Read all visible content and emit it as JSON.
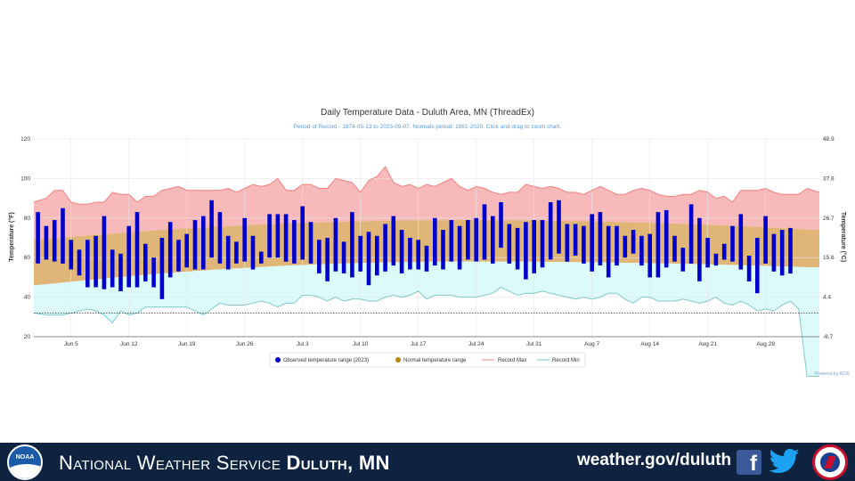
{
  "chart_data": {
    "type": "bar",
    "title": "Daily Temperature Data - Duluth Area, MN (ThreadEx)",
    "subtitle": "Period of Record - 1874-05-13 to 2023-09-07. Normals period: 1991-2020. Click and drag to zoom chart.",
    "ylabel": "Temperature (°F)",
    "y2label": "Temperature (°C)",
    "ylim": [
      20,
      120
    ],
    "yticks": [
      "120",
      "100",
      "80",
      "60",
      "40",
      "20"
    ],
    "y2ticks": [
      "48.9",
      "37.8",
      "26.7",
      "15.6",
      "4.4",
      "-6.7"
    ],
    "xticks": [
      "Jun 5",
      "Jun 12",
      "Jun 19",
      "Jun 26",
      "Jul 3",
      "Jul 10",
      "Jul 17",
      "Jul 24",
      "Jul 31",
      "Aug 7",
      "Aug 14",
      "Aug 21",
      "Aug 28"
    ],
    "grid": true,
    "legend_position": "bottom",
    "start_date": "2023-06-01",
    "end_date": "2023-09-03",
    "dates": [
      "Jun 1",
      "Jun 2",
      "Jun 3",
      "Jun 4",
      "Jun 5",
      "Jun 6",
      "Jun 7",
      "Jun 8",
      "Jun 9",
      "Jun 10",
      "Jun 11",
      "Jun 12",
      "Jun 13",
      "Jun 14",
      "Jun 15",
      "Jun 16",
      "Jun 17",
      "Jun 18",
      "Jun 19",
      "Jun 20",
      "Jun 21",
      "Jun 22",
      "Jun 23",
      "Jun 24",
      "Jun 25",
      "Jun 26",
      "Jun 27",
      "Jun 28",
      "Jun 29",
      "Jun 30",
      "Jul 1",
      "Jul 2",
      "Jul 3",
      "Jul 4",
      "Jul 5",
      "Jul 6",
      "Jul 7",
      "Jul 8",
      "Jul 9",
      "Jul 10",
      "Jul 11",
      "Jul 12",
      "Jul 13",
      "Jul 14",
      "Jul 15",
      "Jul 16",
      "Jul 17",
      "Jul 18",
      "Jul 19",
      "Jul 20",
      "Jul 21",
      "Jul 22",
      "Jul 23",
      "Jul 24",
      "Jul 25",
      "Jul 26",
      "Jul 27",
      "Jul 28",
      "Jul 29",
      "Jul 30",
      "Jul 31",
      "Aug 1",
      "Aug 2",
      "Aug 3",
      "Aug 4",
      "Aug 5",
      "Aug 6",
      "Aug 7",
      "Aug 8",
      "Aug 9",
      "Aug 10",
      "Aug 11",
      "Aug 12",
      "Aug 13",
      "Aug 14",
      "Aug 15",
      "Aug 16",
      "Aug 17",
      "Aug 18",
      "Aug 19",
      "Aug 20",
      "Aug 21",
      "Aug 22",
      "Aug 23",
      "Aug 24",
      "Aug 25",
      "Aug 26",
      "Aug 27",
      "Aug 28",
      "Aug 29",
      "Aug 30",
      "Aug 31",
      "Sep 1",
      "Sep 2",
      "Sep 3"
    ],
    "series": [
      {
        "name": "Observed temperature range (2023)",
        "color": "#0000cc",
        "high": [
          83,
          76,
          79,
          85,
          69,
          64,
          69,
          71,
          81,
          64,
          62,
          76,
          83,
          67,
          60,
          70,
          78,
          69,
          72,
          79,
          81,
          89,
          83,
          71,
          68,
          80,
          71,
          63,
          82,
          82,
          82,
          79,
          86,
          78,
          69,
          70,
          80,
          68,
          83,
          71,
          73,
          71,
          77,
          81,
          74,
          70,
          69,
          66,
          80,
          74,
          79,
          76,
          79,
          80,
          87,
          81,
          88,
          77,
          75,
          78,
          79,
          79,
          88,
          89,
          77,
          77,
          76,
          82,
          83,
          76,
          76,
          71,
          74,
          71,
          72,
          83,
          84,
          71,
          65,
          87,
          80,
          70,
          62,
          67,
          76,
          82,
          61,
          70,
          81,
          72,
          74,
          75,
          0,
          0,
          0
        ],
        "low": [
          57,
          59,
          58,
          57,
          54,
          51,
          45,
          45,
          44,
          45,
          43,
          45,
          45,
          48,
          45,
          39,
          50,
          53,
          55,
          54,
          54,
          60,
          57,
          54,
          57,
          58,
          54,
          57,
          60,
          60,
          58,
          57,
          59,
          57,
          52,
          48,
          53,
          52,
          50,
          53,
          46,
          51,
          53,
          56,
          52,
          54,
          54,
          53,
          56,
          54,
          58,
          54,
          59,
          58,
          59,
          57,
          65,
          57,
          54,
          49,
          52,
          55,
          59,
          62,
          58,
          61,
          57,
          53,
          56,
          50,
          56,
          60,
          62,
          56,
          50,
          50,
          55,
          58,
          53,
          57,
          48,
          55,
          56,
          59,
          58,
          54,
          48,
          42,
          57,
          53,
          51,
          52,
          0,
          0,
          0
        ]
      },
      {
        "name": "Normal temperature range",
        "color": "#b8860b",
        "high_start": 69,
        "high_peak": 79,
        "high_end": 74,
        "low_start": 46,
        "low_peak": 58,
        "low_end": 55
      },
      {
        "name": "Record Max",
        "color": "#f08080",
        "values": [
          88,
          90,
          94,
          94,
          88,
          87,
          87,
          88,
          88,
          93,
          92,
          92,
          88,
          91,
          91,
          94,
          95,
          96,
          94,
          94,
          94,
          94,
          94,
          95,
          93,
          95,
          97,
          96,
          97,
          100,
          94,
          94,
          97,
          97,
          95,
          95,
          100,
          99,
          98,
          93,
          99,
          101,
          106,
          98,
          96,
          97,
          95,
          97,
          96,
          98,
          100,
          96,
          94,
          96,
          95,
          93,
          92,
          93,
          93,
          97,
          96,
          95,
          96,
          95,
          93,
          93,
          92,
          94,
          96,
          94,
          92,
          92,
          94,
          95,
          94,
          92,
          91,
          91,
          92,
          92,
          94,
          93,
          90,
          91,
          88,
          94,
          94,
          94,
          95,
          93,
          92,
          92,
          92,
          95,
          93
        ]
      },
      {
        "name": "Record Min",
        "color": "#7fc8c8",
        "values": [
          32,
          31,
          31,
          31,
          32,
          33,
          34,
          33,
          31,
          27,
          33,
          31,
          32,
          35,
          35,
          35,
          35,
          35,
          35,
          33,
          31,
          34,
          37,
          36,
          36,
          36,
          37,
          38,
          37,
          35,
          37,
          37,
          41,
          41,
          40,
          38,
          40,
          38,
          39,
          39,
          38,
          38,
          40,
          41,
          40,
          41,
          43,
          39,
          41,
          41,
          41,
          40,
          40,
          40,
          41,
          42,
          45,
          43,
          41,
          42,
          42,
          43,
          42,
          41,
          40,
          39,
          40,
          39,
          40,
          42,
          42,
          39,
          37,
          40,
          40,
          38,
          38,
          38,
          39,
          38,
          37,
          38,
          40,
          37,
          36,
          38,
          36,
          33,
          34,
          33,
          36,
          38,
          34,
          0,
          0
        ]
      }
    ],
    "legend": [
      "Observed temperature range (2023)",
      "Normal temperature range",
      "Record Max",
      "Record Min"
    ],
    "credit": "Powered by ACIS"
  },
  "footer": {
    "noaa_logo": "NOAA",
    "agency_prefix": "National Weather Service ",
    "office": "Duluth, MN",
    "url": "weather.gov/duluth",
    "facebook_icon": "f",
    "twitter_icon": "twitter-bird-icon",
    "seal_icon": "nws-seal-icon"
  },
  "colors": {
    "observed": "#0000cc",
    "normal_band": "#d4a868",
    "record_max_fill": "#f8b4b4",
    "record_min_fill": "#d8f8f8",
    "footer_bg": "#0d2340"
  }
}
